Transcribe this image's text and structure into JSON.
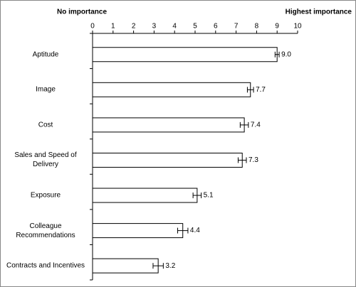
{
  "chart_data": {
    "type": "bar",
    "orientation": "horizontal",
    "axis_left_label": "No importance",
    "axis_right_label": "Highest importance",
    "categories": [
      "Aptitude",
      "Image",
      "Cost",
      "Sales and Speed of Delivery",
      "Exposure",
      "Colleague Recommendations",
      "Contracts and Incentives"
    ],
    "values": [
      9.0,
      7.7,
      7.4,
      7.3,
      5.1,
      4.4,
      3.2
    ],
    "value_labels": [
      "9.0",
      "7.7",
      "7.4",
      "7.3",
      "5.1",
      "4.4",
      "3.2"
    ],
    "errors": [
      0.1,
      0.15,
      0.2,
      0.2,
      0.2,
      0.25,
      0.25
    ],
    "color": "#ffffff",
    "xlim": [
      0,
      10
    ],
    "xticks": [
      0,
      1,
      2,
      3,
      4,
      5,
      6,
      7,
      8,
      9,
      10
    ]
  }
}
